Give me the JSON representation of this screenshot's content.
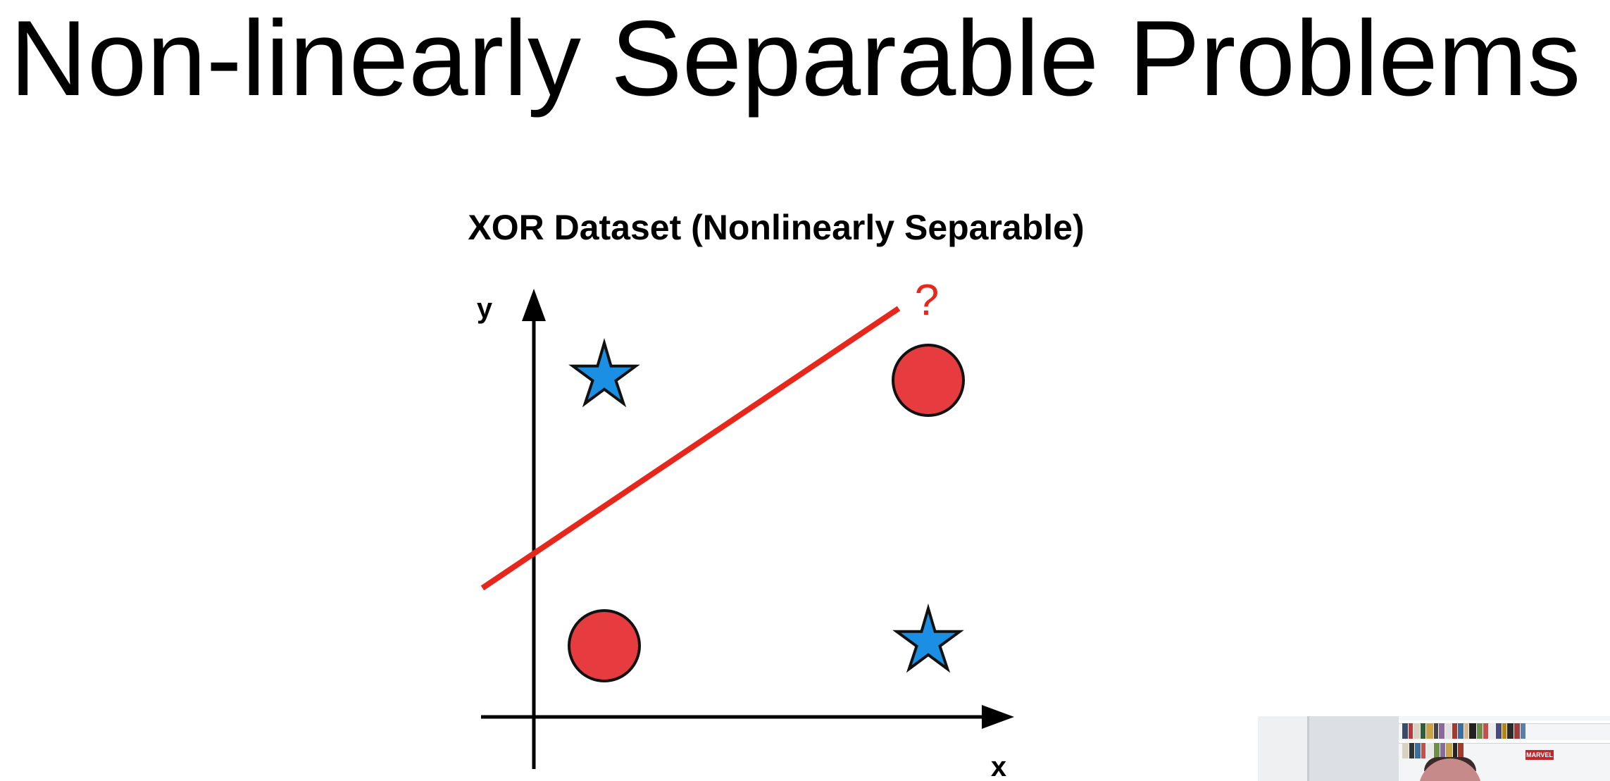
{
  "slide": {
    "title": "Non-linearly Separable Problems"
  },
  "diagram": {
    "title": "XOR Dataset (Nonlinearly Separable)",
    "x_axis_label": "x",
    "y_axis_label": "y",
    "line_annotation": "?",
    "colors": {
      "star_fill": "#1a8fe3",
      "circle_fill": "#e63b3f",
      "separator_line": "#e8271c",
      "annotation": "#e8271c",
      "axis": "#000000"
    },
    "points": [
      {
        "shape": "star",
        "class": "blue-star",
        "position": "top-left"
      },
      {
        "shape": "circle",
        "class": "red-circle",
        "position": "top-right"
      },
      {
        "shape": "circle",
        "class": "red-circle",
        "position": "bottom-left"
      },
      {
        "shape": "star",
        "class": "blue-star",
        "position": "bottom-right"
      }
    ]
  },
  "webcam": {
    "badge_text": "MARVEL"
  }
}
